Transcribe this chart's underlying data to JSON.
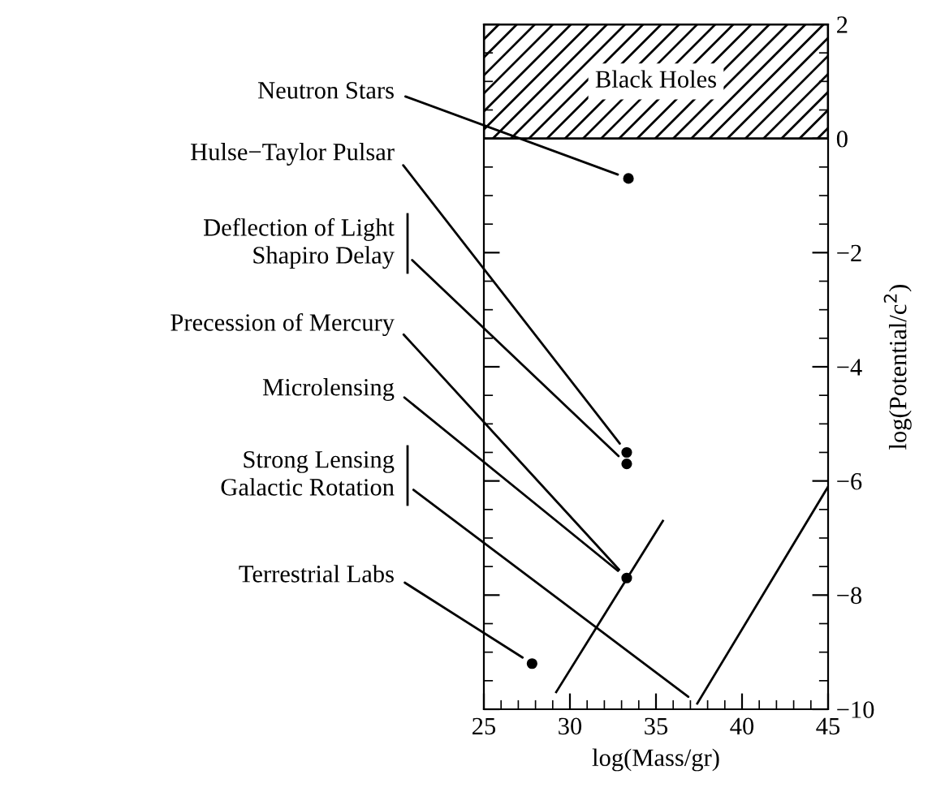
{
  "chart_data": {
    "type": "scatter",
    "xlabel": "log(Mass/gr)",
    "ylabel": "log(Potential/c$^{2}$)",
    "xlim": [
      25,
      45
    ],
    "xticks": [
      25,
      30,
      35,
      40,
      45
    ],
    "ylim": [
      -10,
      2
    ],
    "yticks": [
      -10,
      -8,
      -6,
      -4,
      -2,
      0,
      2
    ],
    "grid": false,
    "series": [
      {
        "marker": "circle",
        "color": "#000000",
        "x": [
          33.4,
          33.3,
          33.3,
          33.3,
          27.8
        ],
        "values": [
          -0.7,
          -5.5,
          -5.7,
          -7.7,
          -9.2
        ]
      },
      {
        "type": "line",
        "color": "#000000",
        "x": [
          29.2,
          35.4
        ],
        "values": [
          -9.7,
          -6.7
        ]
      },
      {
        "type": "line",
        "color": "#000000",
        "x": [
          37.4,
          45
        ],
        "values": [
          -9.9,
          -6.1
        ]
      }
    ],
    "bands": [
      {
        "axis": "y",
        "from": 0,
        "to": 2,
        "label": "Black Holes"
      }
    ],
    "annotations": [
      {
        "text": "Neutron Stars",
        "x": 33.4,
        "y": -0.7
      },
      {
        "text": "Hulse−Taylor Pulsar",
        "x": 33.3,
        "y": -5.5
      },
      {
        "text": "Deflection of Light\nShapiro Delay",
        "x": 33.3,
        "y": -5.7
      },
      {
        "text": "Precession of Mercury",
        "x": 33.3,
        "y": -7.7
      },
      {
        "text": "Microlensing",
        "x": 33.3,
        "y": -7.7
      },
      {
        "text": "Strong Lensing\nGalactic Rotation",
        "x": 37.4,
        "y": -9.9
      },
      {
        "text": "Terrestrial Labs",
        "x": 27.8,
        "y": -9.2
      }
    ]
  }
}
